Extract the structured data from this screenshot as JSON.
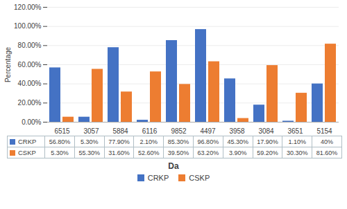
{
  "chart_data": {
    "type": "bar",
    "categories": [
      "6515",
      "3057",
      "5884",
      "6116",
      "9852",
      "4497",
      "3958",
      "3084",
      "3651",
      "5154"
    ],
    "series": [
      {
        "name": "CRKP",
        "color": "#4472C4",
        "values": [
          56.8,
          5.3,
          77.9,
          2.1,
          85.3,
          96.8,
          45.3,
          17.9,
          1.1,
          40
        ],
        "value_labels": [
          "56.80%",
          "5.30%",
          "77.90%",
          "2.10%",
          "85.30%",
          "96.80%",
          "45.30%",
          "17.90%",
          "1.10%",
          "40%"
        ]
      },
      {
        "name": "CSKP",
        "color": "#ED7D31",
        "values": [
          5.3,
          55.3,
          31.6,
          52.6,
          39.5,
          63.2,
          3.9,
          59.2,
          30.3,
          81.6
        ],
        "value_labels": [
          "5.30%",
          "55.30%",
          "31.60%",
          "52.60%",
          "39.50%",
          "63.20%",
          "3.90%",
          "59.20%",
          "30.30%",
          "81.60%"
        ]
      }
    ],
    "xlabel": "Da",
    "ylabel": "Percentage",
    "ylim": [
      0,
      120
    ],
    "yticks": [
      {
        "value": 0,
        "label": "0.00%"
      },
      {
        "value": 20,
        "label": "20.00%"
      },
      {
        "value": 40,
        "label": "40.00%"
      },
      {
        "value": 60,
        "label": "60.00%"
      },
      {
        "value": 80,
        "label": "80.00%"
      },
      {
        "value": 100,
        "label": "100.00%"
      },
      {
        "value": 120,
        "label": "120.00%"
      }
    ],
    "grid": true,
    "legend": "bottom",
    "data_labels": true
  }
}
